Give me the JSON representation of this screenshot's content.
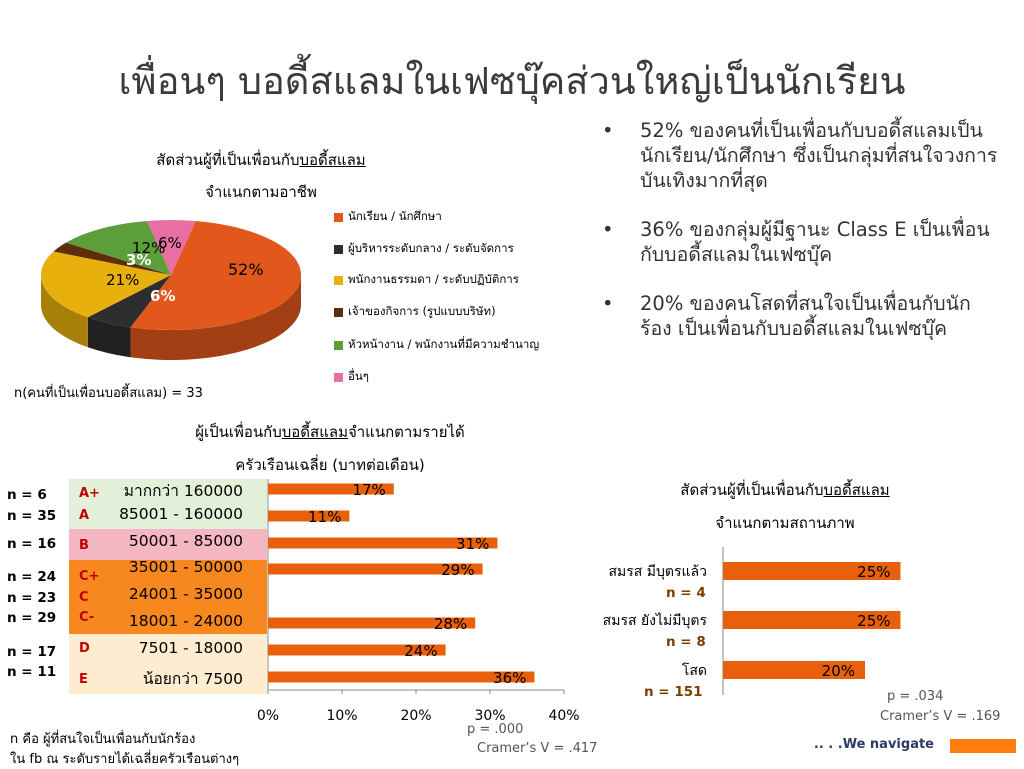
{
  "page": {
    "title": "เพื่อนๆ บอดี้สแลมในเฟซบุ๊คส่วนใหญ่เป็นนักเรียน",
    "bullets": [
      "52% ของคนที่เป็นเพื่อนกับบอดี้สแลมเป็นนักเรียน/นักศึกษา ซึ่งเป็นกลุ่มที่สนใจวงการบันเทิงมากที่สุด",
      "36% ของกลุ่มผู้มีฐานะ Class E เป็นเพื่อนกับบอดี้สแลมในเฟซบุ๊ค",
      "20% ของคนโสดที่สนใจเป็นเพื่อนกับนักร้อง เป็นเพื่อนกับบอดี้สแลมในเฟซบุ๊ค"
    ],
    "footer_brand": ".. . .We navigate",
    "colors": {
      "orange": "#e8600c",
      "band_a": "#e2efd9",
      "band_b": "#f4b6c2",
      "band_c": "#f6881f",
      "band_de": "#fdeccf",
      "footer": "#ff7c10"
    }
  },
  "pie": {
    "title_1": "สัดส่วนผู้ที่เป็นเพื่อนกับ",
    "title_1_u": "บอดี้สแลม",
    "title_2": "จำแนกตามอาชีพ",
    "n_note": "n(คนที่เป็นเพื่อนบอดี้สแลม) = 33"
  },
  "income": {
    "title_1": "ผู้เป็นเพื่อนกับ",
    "title_1_u": "บอดี้สแลม",
    "title_1b": "จำแนกตามรายได้",
    "title_2": "ครัวเรือนเฉลี่ย (บาทต่อเดือน)",
    "n_labels": [
      "n = 6",
      "n = 35",
      "n = 16",
      "n = 24",
      "n = 23",
      "n = 29",
      "n = 17",
      "n = 11"
    ],
    "classes": [
      "A+",
      "A",
      "B",
      "C+",
      "C",
      "C-",
      "D",
      "E"
    ],
    "stats": [
      "p = .000",
      "Cramer’s V = .417"
    ],
    "footnote": [
      "n คือ ผู้ที่สนใจเป็นเพื่อนกับนักร้อง",
      "ใน fb ณ ระดับรายได้เฉลี่ยครัวเรือนต่างๆ"
    ]
  },
  "status": {
    "title_1": "สัดส่วนผู้ที่เป็นเพื่อนกับ",
    "title_1_u": "บอดี้สแลม",
    "title_2": "จำแนกตามสถานภาพ",
    "n_labels": [
      "n = 4",
      "n = 8",
      "n = 151"
    ],
    "stats": [
      "p = .034",
      "Cramer’s V = .169"
    ]
  },
  "chart_data": [
    {
      "type": "pie",
      "categories": [
        "นักเรียน / นักศึกษา",
        "ผู้บริหารระดับกลาง / ระดับจัดการ",
        "พนักงานธรรมดา / ระดับปฏิบัติการ",
        "เจ้าของกิจการ (รูปแบบบริษัท)",
        "หัวหน้างาน / พนักงานที่มีความชำนาญ",
        "อื่นๆ"
      ],
      "values": [
        52,
        6,
        21,
        3,
        12,
        6
      ],
      "data_labels": [
        "52%",
        "6%",
        "21%",
        "3%",
        "12%",
        "6%"
      ],
      "colors": [
        "#e2571c",
        "#2e2e2e",
        "#e8b00c",
        "#5e2e0c",
        "#5c9e3a",
        "#e96fa3"
      ],
      "legend": "right"
    },
    {
      "type": "bar",
      "orientation": "horizontal",
      "categories": [
        "มากกว่า 160000",
        "85001 - 160000",
        "50001 - 85000",
        "35001 - 50000",
        "24001 - 35000",
        "18001 - 24000",
        "7501 - 18000",
        "น้อยกว่า 7500"
      ],
      "values": [
        17,
        11,
        31,
        29,
        null,
        28,
        24,
        36
      ],
      "data_labels": [
        "17%",
        "11%",
        "31%",
        "29%",
        "",
        "28%",
        "24%",
        "36%"
      ],
      "xlim": [
        0,
        40
      ],
      "x_ticks": [
        "0%",
        "10%",
        "20%",
        "30%",
        "40%"
      ],
      "color": "#e8600c"
    },
    {
      "type": "bar",
      "orientation": "horizontal",
      "categories": [
        "สมรส มีบุตรแล้ว",
        "สมรส ยังไม่มีบุตร",
        "โสด"
      ],
      "values": [
        25,
        25,
        20
      ],
      "data_labels": [
        "25%",
        "25%",
        "20%"
      ],
      "color": "#e8600c"
    }
  ]
}
